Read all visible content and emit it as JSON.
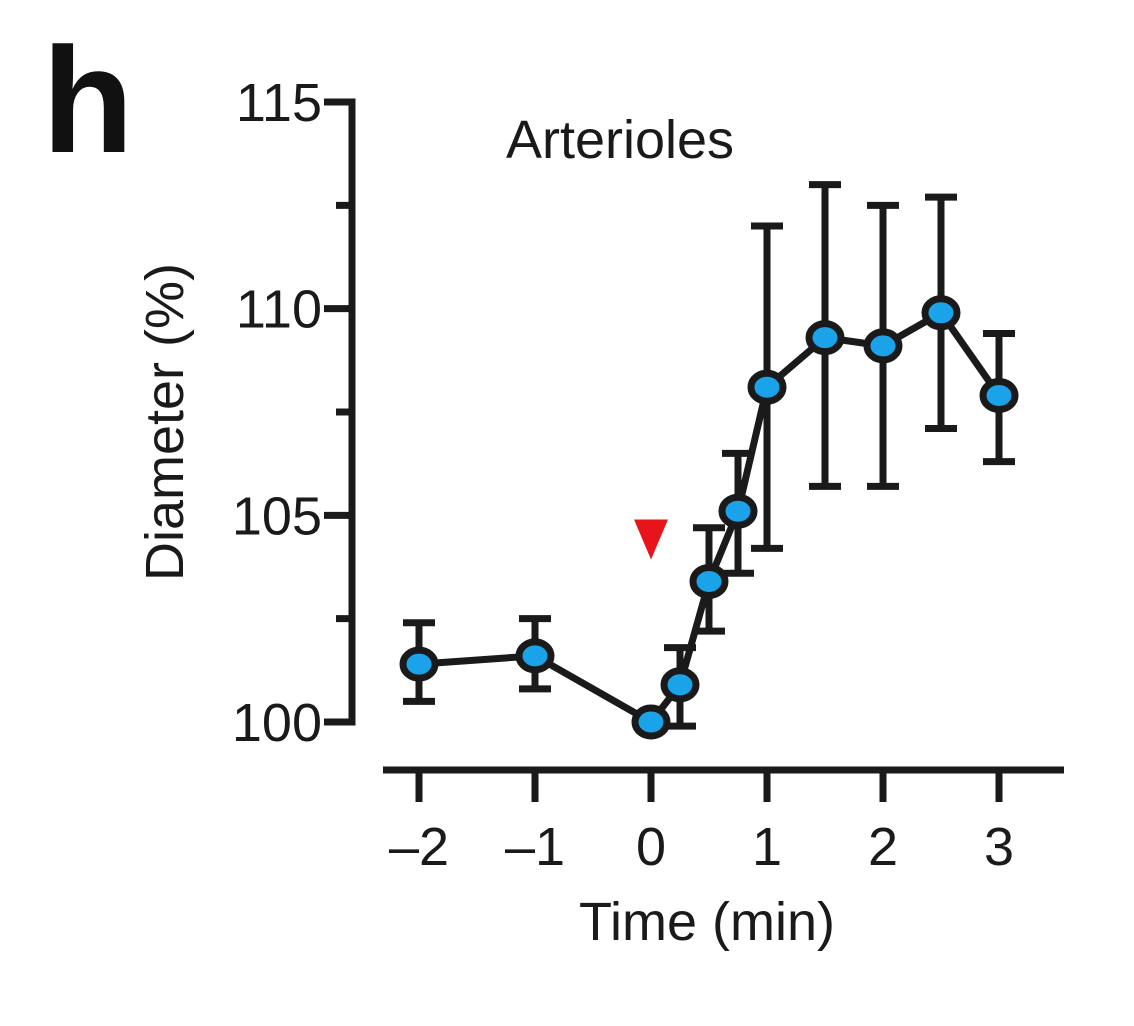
{
  "panel_label": "h",
  "chart_data": {
    "type": "line",
    "title": "Arterioles",
    "xlabel": "Time (min)",
    "ylabel": "Diameter (%)",
    "xlim": [
      -2.2,
      3.55
    ],
    "ylim": [
      100,
      115
    ],
    "x_ticks": [
      -2,
      -1,
      0,
      1,
      2,
      3
    ],
    "x_tick_labels": [
      "–2",
      "–1",
      "0",
      "1",
      "2",
      "3"
    ],
    "y_major_ticks": [
      100,
      105,
      110,
      115
    ],
    "y_minor_ticks": [
      102.5,
      107.5,
      112.5
    ],
    "y_tick_labels": [
      "100",
      "105",
      "110",
      "115"
    ],
    "grid": false,
    "legend": "none",
    "series": [
      {
        "x": [
          -2,
          -1,
          0,
          0.25,
          0.5,
          0.75,
          1,
          1.5,
          2,
          2.5,
          3
        ],
        "y": [
          101.4,
          101.6,
          100.0,
          100.9,
          103.4,
          105.1,
          108.1,
          109.3,
          109.1,
          109.9,
          107.9
        ],
        "err_low": [
          100.5,
          100.8,
          null,
          99.9,
          102.2,
          103.6,
          104.2,
          105.7,
          105.7,
          107.1,
          106.3
        ],
        "err_high": [
          102.4,
          102.5,
          null,
          101.8,
          104.7,
          106.5,
          112.0,
          113.0,
          112.5,
          112.7,
          109.4
        ]
      }
    ],
    "annotations": [
      {
        "type": "arrowhead",
        "direction": "down",
        "x": 0,
        "y": 104.9
      }
    ],
    "colors": {
      "marker_fill": "#1aa3e8",
      "line": "#1a1a1a",
      "annotation": "#e8141c"
    }
  }
}
